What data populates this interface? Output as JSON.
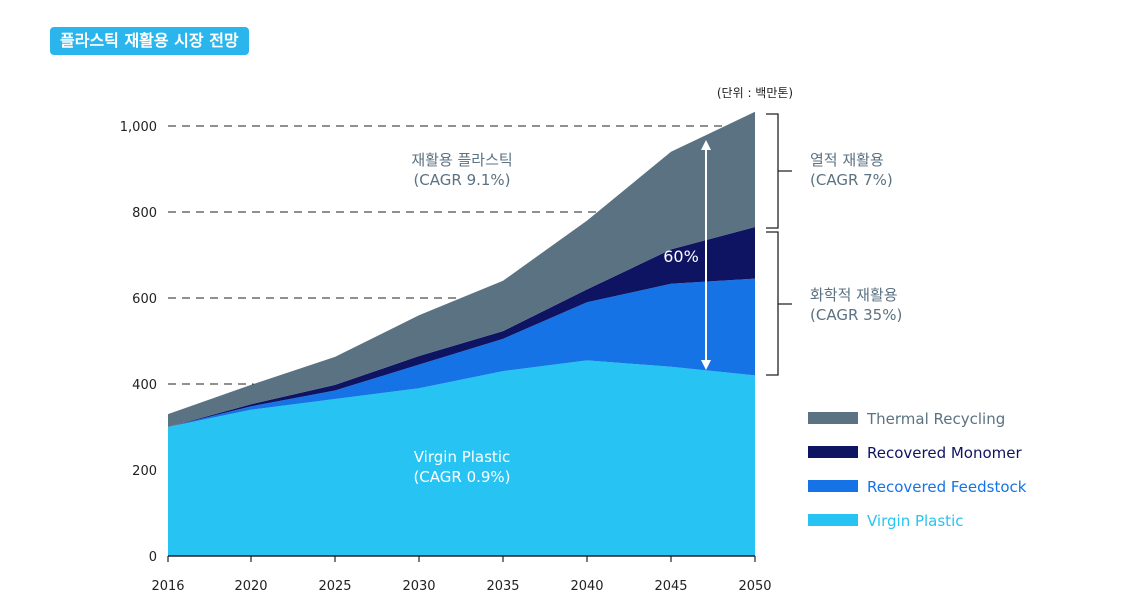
{
  "header": {
    "badge": "플라스틱 재활용 시장 전망"
  },
  "chart_data": {
    "type": "area",
    "stacked": true,
    "unit_note": "(단위 : 백만톤)",
    "x": [
      "2016",
      "2020",
      "2025",
      "2030",
      "2035",
      "2040",
      "2045",
      "2050"
    ],
    "yticks": [
      "0",
      "200",
      "400",
      "600",
      "800",
      "1,000"
    ],
    "ylim": [
      0,
      1040
    ],
    "grid": "dashed reference lines at 400, 600, 800, 1000",
    "series": [
      {
        "name": "Virgin Plastic",
        "color": "#27c3f3",
        "values": [
          300,
          340,
          365,
          390,
          430,
          455,
          440,
          420
        ]
      },
      {
        "name": "Recovered Feedstock",
        "color": "#1673e6",
        "values": [
          0,
          8,
          20,
          55,
          75,
          135,
          193,
          225
        ]
      },
      {
        "name": "Recovered Monomer",
        "color": "#0f1462",
        "values": [
          0,
          5,
          13,
          20,
          18,
          30,
          80,
          120
        ]
      },
      {
        "name": "Thermal Recycling",
        "color": "#5b7282",
        "values": [
          30,
          45,
          65,
          95,
          117,
          160,
          227,
          268
        ]
      }
    ],
    "annotations": {
      "virgin_line1": "Virgin Plastic",
      "virgin_line2": "(CAGR 0.9%)",
      "recycled_line1": "재활용 플라스틱",
      "recycled_line2": "(CAGR 9.1%)",
      "share": "60%",
      "thermal_line1": "열적 재활용",
      "thermal_line2": "(CAGR 7%)",
      "chemical_line1": "화학적 재활용",
      "chemical_line2": "(CAGR 35%)"
    },
    "legend": {
      "placement": "right",
      "items": [
        {
          "label": "Thermal Recycling",
          "color": "#5b7282"
        },
        {
          "label": "Recovered Monomer",
          "color": "#0f1462"
        },
        {
          "label": "Recovered Feedstock",
          "color": "#1673e6"
        },
        {
          "label": "Virgin Plastic",
          "color": "#27c3f3"
        }
      ]
    }
  }
}
